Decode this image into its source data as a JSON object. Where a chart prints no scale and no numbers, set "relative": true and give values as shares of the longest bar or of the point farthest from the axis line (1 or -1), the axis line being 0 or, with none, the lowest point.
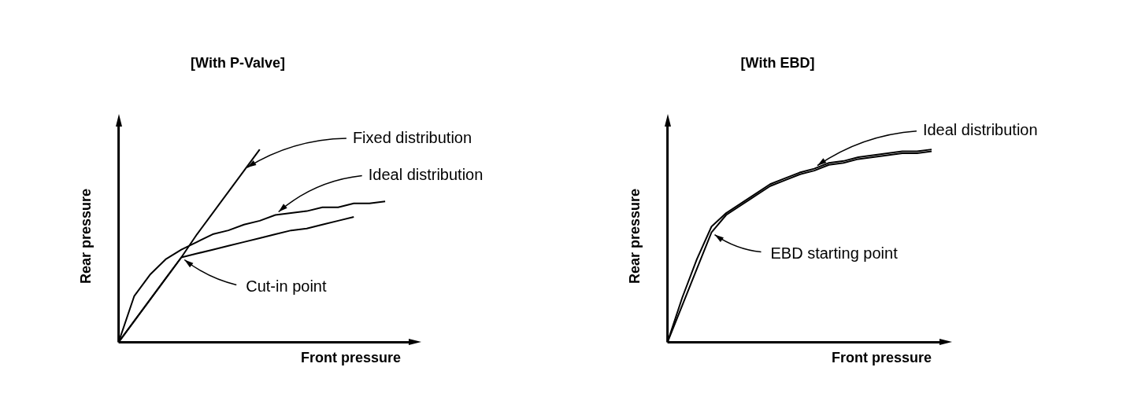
{
  "chart_data": [
    {
      "type": "line",
      "title": "[With P-Valve]",
      "xlabel": "Front pressure",
      "ylabel": "Rear pressure",
      "relative": true,
      "tick_labels": false,
      "marker": "none",
      "line_style": "solid",
      "categories": [
        null,
        null,
        null,
        null,
        null,
        null,
        null,
        null,
        null,
        null,
        null,
        null,
        null,
        null,
        null,
        null,
        null,
        null,
        null
      ],
      "series": [
        {
          "name": "Fixed distribution",
          "color": "#000000",
          "values": [
            0,
            0.11,
            0.22,
            0.33,
            0.44,
            0.56,
            0.67,
            0.78,
            0.89,
            1,
            null,
            null,
            null,
            null,
            null,
            null,
            null,
            null,
            null
          ]
        },
        {
          "name": "Ideal distribution",
          "color": "#000000",
          "values": [
            0,
            0.24,
            0.35,
            0.43,
            0.48,
            0.52,
            0.56,
            0.58,
            0.61,
            0.63,
            0.66,
            0.67,
            0.68,
            0.7,
            0.7,
            0.72,
            0.72,
            0.73,
            null
          ]
        },
        {
          "color": "#000000",
          "values": [
            0,
            0.11,
            0.22,
            0.33,
            0.44,
            0.46,
            0.48,
            0.5,
            0.52,
            0.54,
            0.56,
            0.58,
            0.59,
            0.61,
            0.63,
            0.65,
            null,
            null,
            null
          ]
        }
      ],
      "annotations": [
        "Cut-in point"
      ]
    },
    {
      "type": "line",
      "title": "[With EBD]",
      "xlabel": "Front pressure",
      "ylabel": "Rear pressure",
      "relative": true,
      "tick_labels": false,
      "marker": "none",
      "line_style": "solid",
      "categories": [
        null,
        null,
        null,
        null,
        null,
        null,
        null,
        null,
        null,
        null,
        null,
        null,
        null,
        null,
        null,
        null,
        null,
        null,
        null
      ],
      "series": [
        {
          "name": "Ideal distribution",
          "color": "#000000",
          "values": [
            0,
            0.23,
            0.43,
            0.6,
            0.67,
            0.72,
            0.77,
            0.82,
            0.85,
            0.88,
            0.9,
            0.93,
            0.94,
            0.96,
            0.97,
            0.98,
            0.99,
            0.99,
            1
          ]
        },
        {
          "color": "#000000",
          "values": [
            0,
            0.19,
            0.38,
            0.57,
            0.66,
            0.71,
            0.76,
            0.81,
            0.84,
            0.87,
            0.89,
            0.92,
            0.93,
            0.95,
            0.96,
            0.97,
            0.98,
            0.98,
            0.99
          ]
        }
      ],
      "annotations": [
        "EBD starting point"
      ]
    }
  ]
}
